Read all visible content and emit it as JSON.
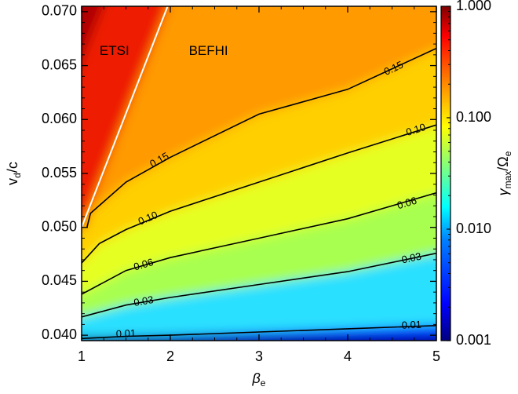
{
  "chart_data": {
    "type": "heatmap",
    "title": "",
    "xlabel": {
      "main": "β",
      "sub": "e"
    },
    "ylabel": {
      "main": "v",
      "sub": "d",
      "tail": "/c"
    },
    "xlim": [
      1,
      5
    ],
    "ylim": [
      0.0395,
      0.0705
    ],
    "x_ticks": [
      1,
      2,
      3,
      4,
      5
    ],
    "x_tick_labels": [
      "1",
      "2",
      "3",
      "4",
      "5"
    ],
    "y_ticks": [
      0.04,
      0.045,
      0.05,
      0.055,
      0.06,
      0.065,
      0.07
    ],
    "y_tick_labels": [
      "0.040",
      "0.045",
      "0.050",
      "0.055",
      "0.060",
      "0.065",
      "0.070"
    ],
    "colorbar": {
      "scale": "log",
      "range": [
        0.001,
        1.0
      ],
      "label": {
        "main": "γ",
        "sub_max": "max",
        "mid": "/Ω",
        "sub_e": "e"
      },
      "ticks": [
        0.001,
        0.01,
        0.1,
        1.0
      ],
      "tick_labels": [
        "0.001",
        "0.010",
        "0.100",
        "1.000"
      ],
      "colormap": [
        "#00007f",
        "#0000ff",
        "#007fff",
        "#00ffff",
        "#7fff7f",
        "#ffff00",
        "#ff7f00",
        "#ff0000",
        "#7f0000"
      ]
    },
    "series": [
      {
        "level": 0.01,
        "label": "0.01",
        "points": [
          [
            1,
            0.0397
          ],
          [
            1.5,
            0.0399
          ],
          [
            2,
            0.04
          ],
          [
            3,
            0.0403
          ],
          [
            4,
            0.0406
          ],
          [
            5,
            0.0409
          ]
        ]
      },
      {
        "level": 0.03,
        "label": "0.03",
        "points": [
          [
            1,
            0.0417
          ],
          [
            1.5,
            0.0428
          ],
          [
            2,
            0.0435
          ],
          [
            3,
            0.0447
          ],
          [
            4,
            0.0459
          ],
          [
            5,
            0.0476
          ]
        ]
      },
      {
        "level": 0.06,
        "label": "0.06",
        "points": [
          [
            1,
            0.0438
          ],
          [
            1.5,
            0.046
          ],
          [
            2,
            0.0472
          ],
          [
            3,
            0.049
          ],
          [
            4,
            0.0508
          ],
          [
            5,
            0.0532
          ]
        ]
      },
      {
        "level": 0.1,
        "label": "0.10",
        "points": [
          [
            1,
            0.0467
          ],
          [
            1.2,
            0.0485
          ],
          [
            1.5,
            0.0498
          ],
          [
            2,
            0.0515
          ],
          [
            3,
            0.0542
          ],
          [
            4,
            0.0569
          ],
          [
            5,
            0.0595
          ]
        ]
      },
      {
        "level": 0.15,
        "label": "0.15",
        "points": [
          [
            1.06,
            0.05
          ],
          [
            1.1,
            0.0513
          ],
          [
            1.5,
            0.0542
          ],
          [
            2,
            0.0565
          ],
          [
            3,
            0.0605
          ],
          [
            4,
            0.0628
          ],
          [
            5,
            0.0666
          ]
        ]
      }
    ],
    "contour_labels": [
      {
        "text": "0.01",
        "x": 1.5,
        "y": 0.0401
      },
      {
        "text": "0.03",
        "x": 1.7,
        "y": 0.0431
      },
      {
        "text": "0.06",
        "x": 1.7,
        "y": 0.0465
      },
      {
        "text": "0.10",
        "x": 1.75,
        "y": 0.0508
      },
      {
        "text": "0.15",
        "x": 1.88,
        "y": 0.0562
      },
      {
        "text": "0.15",
        "x": 4.52,
        "y": 0.0647
      },
      {
        "text": "0.10",
        "x": 4.77,
        "y": 0.059
      },
      {
        "text": "0.06",
        "x": 4.67,
        "y": 0.0522
      },
      {
        "text": "0.03",
        "x": 4.72,
        "y": 0.0471
      },
      {
        "text": "0.01",
        "x": 4.72,
        "y": 0.0409
      }
    ],
    "boundary_line": {
      "points": [
        [
          1,
          0.05
        ],
        [
          1.97,
          0.0705
        ]
      ],
      "color": "#ffffff"
    },
    "annotations": [
      {
        "text": "ETSI",
        "x": 1.37,
        "y": 0.0663
      },
      {
        "text": "BEFHI",
        "x": 2.43,
        "y": 0.0663
      }
    ]
  }
}
